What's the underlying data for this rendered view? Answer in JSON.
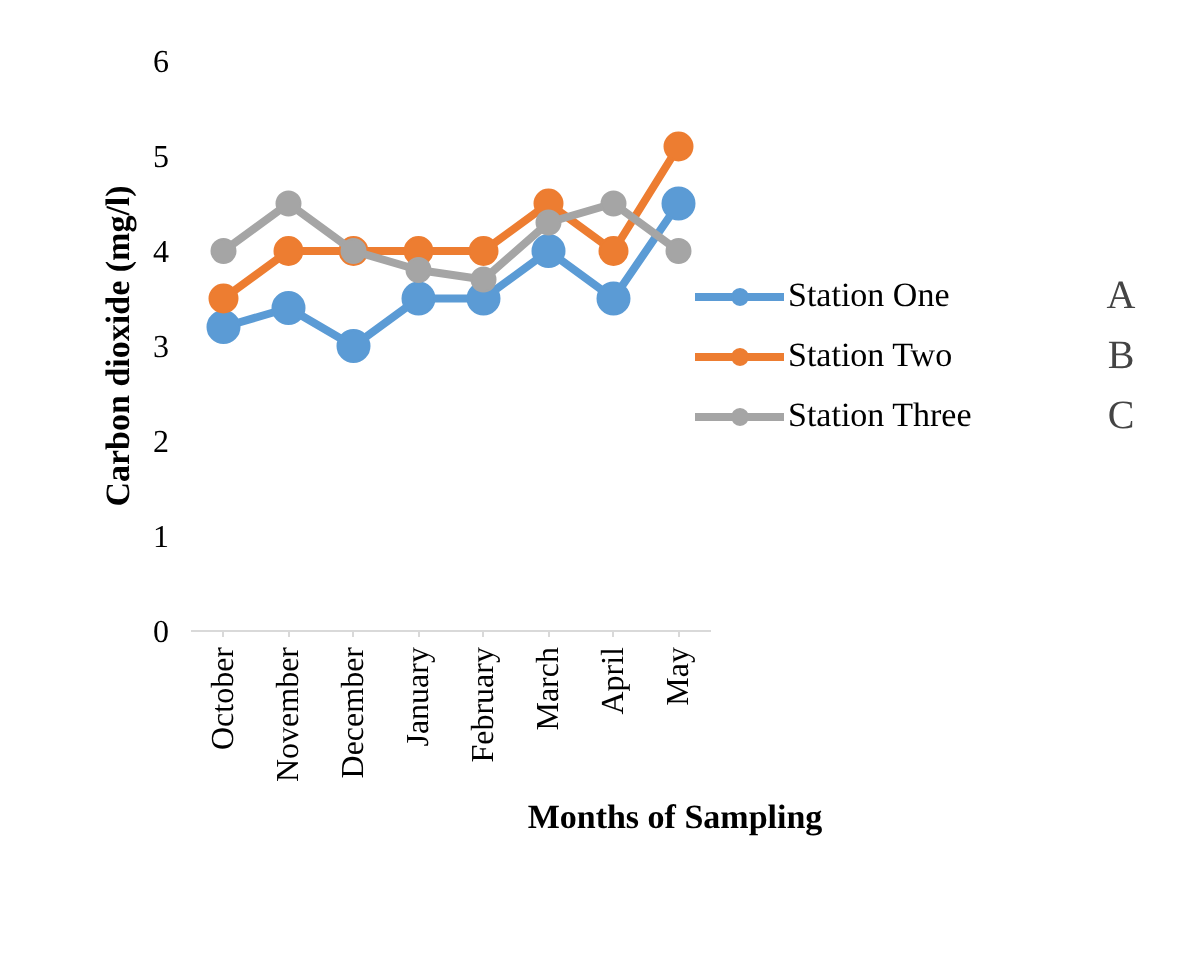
{
  "chart_data": {
    "type": "line",
    "xlabel": "Months of Sampling",
    "ylabel": "Carbon dioxide (mg/l)",
    "categories": [
      "October",
      "November",
      "December",
      "January",
      "February",
      "March",
      "April",
      "May"
    ],
    "series": [
      {
        "name": "Station One",
        "color": "#5b9bd5",
        "values": [
          3.2,
          3.4,
          3.0,
          3.5,
          3.5,
          4.0,
          3.5,
          4.5
        ]
      },
      {
        "name": "Station Two",
        "color": "#ed7d31",
        "values": [
          3.5,
          4.0,
          4.0,
          4.0,
          4.0,
          4.5,
          4.0,
          5.1
        ]
      },
      {
        "name": "Station Three",
        "color": "#a5a5a5",
        "values": [
          4.0,
          4.5,
          4.0,
          3.8,
          3.7,
          4.3,
          4.5,
          4.0
        ]
      }
    ],
    "ylim": [
      0,
      6
    ],
    "yticks": [
      0,
      1,
      2,
      3,
      4,
      5,
      6
    ],
    "grid": false,
    "legend": "right",
    "marker": "circle",
    "line_style": "solid",
    "annotations": [
      "A",
      "B",
      "C"
    ]
  }
}
